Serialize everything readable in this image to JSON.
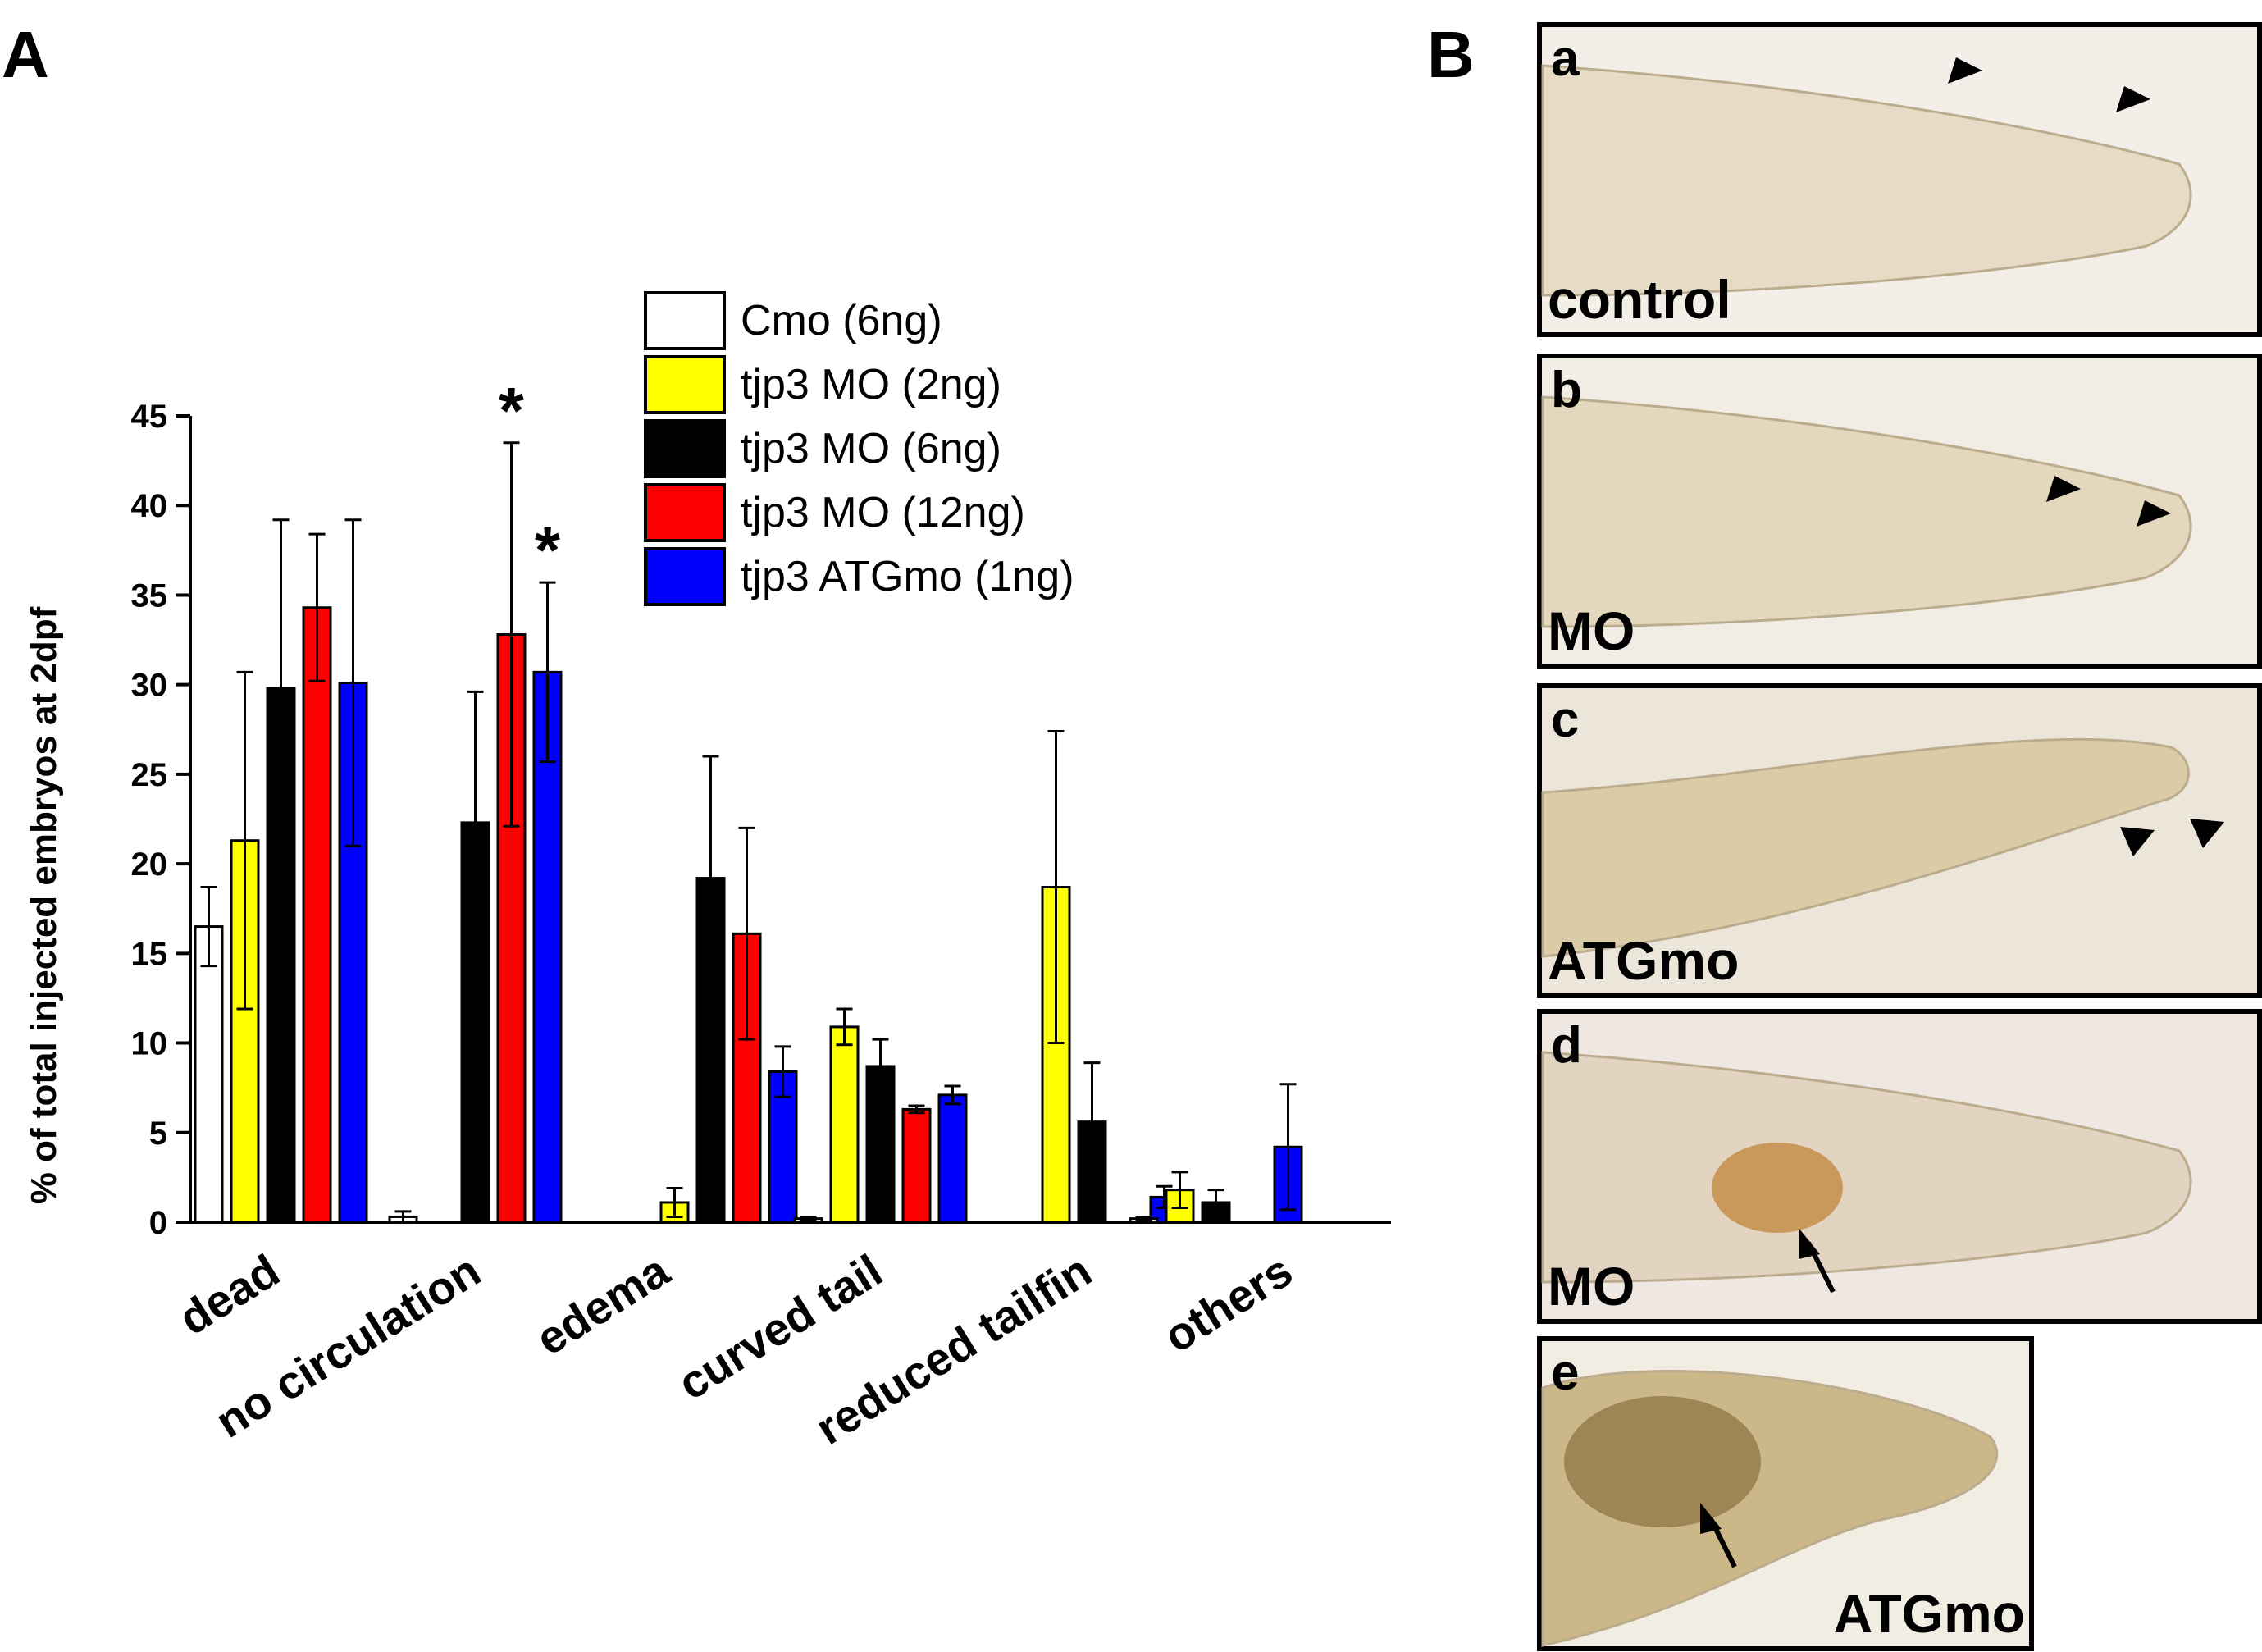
{
  "panels": {
    "a": "A",
    "b": "B"
  },
  "chart_data": {
    "type": "bar",
    "title": "",
    "xlabel": "",
    "ylabel": "% of total injected embryos at 2dpf",
    "ylim": [
      0,
      45
    ],
    "yticks": [
      "0",
      "5",
      "10",
      "15",
      "20",
      "25",
      "30",
      "35",
      "40",
      "45"
    ],
    "categories": [
      "dead",
      "no circulation",
      "edema",
      "curved tail",
      "reduced tailfin",
      "others"
    ],
    "series": [
      {
        "name": "Cmo (6ng)",
        "color": "#ffffff",
        "values": [
          16.5,
          0.3,
          0,
          0.2,
          0,
          0.2
        ],
        "errors": [
          2.2,
          0.3,
          0,
          0.1,
          0,
          0.1
        ]
      },
      {
        "name": "tjp3 MO (2ng)",
        "color": "#ffff00",
        "values": [
          21.3,
          0,
          1.1,
          10.9,
          18.7,
          1.8
        ],
        "errors": [
          9.4,
          0,
          0.8,
          1.0,
          8.7,
          1.0
        ]
      },
      {
        "name": "tjp3 MO (6ng)",
        "color": "#000000",
        "values": [
          29.8,
          22.3,
          19.2,
          8.7,
          5.6,
          1.1
        ],
        "errors": [
          9.4,
          7.3,
          6.8,
          1.5,
          3.3,
          0.7
        ]
      },
      {
        "name": "tjp3 MO (12ng)",
        "color": "#ff0000",
        "values": [
          34.3,
          32.8,
          16.1,
          6.3,
          0,
          0
        ],
        "errors": [
          4.1,
          10.7,
          5.9,
          0.2,
          0,
          0
        ]
      },
      {
        "name": "tjp3 ATGmo (1ng)",
        "color": "#0000ff",
        "values": [
          30.1,
          30.7,
          8.4,
          7.1,
          1.4,
          4.2
        ],
        "errors": [
          9.1,
          5.0,
          1.4,
          0.5,
          0.6,
          3.5
        ]
      }
    ],
    "legend_position": "top-center",
    "significance": [
      {
        "category": "no circulation",
        "series": "tjp3 MO (12ng)",
        "mark": "*"
      },
      {
        "category": "no circulation",
        "series": "tjp3 ATGmo (1ng)",
        "mark": "*"
      }
    ],
    "grid": false
  },
  "micrographs": [
    {
      "letter": "a",
      "label": "control",
      "tissue": "#e6dac3",
      "background": "#f3efe8",
      "markers": [
        "arrowhead",
        "arrowhead"
      ]
    },
    {
      "letter": "b",
      "label": "MO",
      "tissue": "#e3d6bd",
      "background": "#f1ece4",
      "markers": [
        "arrowhead",
        "arrowhead"
      ]
    },
    {
      "letter": "c",
      "label": "ATGmo",
      "tissue": "#d9cba4",
      "background": "#ebe6d9",
      "markers": [
        "arrowhead",
        "arrowhead"
      ]
    },
    {
      "letter": "d",
      "label": "MO",
      "tissue": "#e2d4bf",
      "background": "#efe7e2",
      "markers": [
        "arrow"
      ]
    },
    {
      "letter": "e",
      "label": "ATGmo",
      "tissue": "#c9b584",
      "background": "#f2ede3",
      "markers": [
        "arrow"
      ]
    }
  ]
}
